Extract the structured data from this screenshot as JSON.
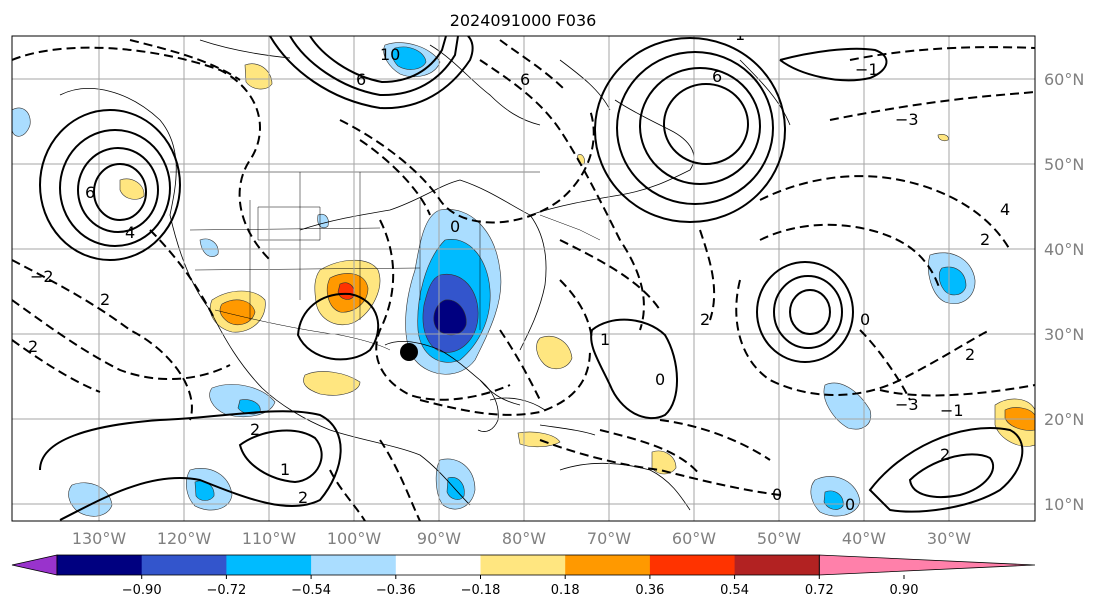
{
  "title": "2024091000 F036",
  "lon_labels": [
    "130°W",
    "120°W",
    "110°W",
    "100°W",
    "90°W",
    "80°W",
    "70°W",
    "60°W",
    "50°W",
    "40°W",
    "30°W"
  ],
  "lat_labels": [
    "60°N",
    "50°N",
    "40°N",
    "30°N",
    "20°N",
    "10°N"
  ],
  "colorbar": {
    "tick_labels": [
      "−0.90",
      "−0.72",
      "−0.54",
      "−0.36",
      "−0.18",
      "0.18",
      "0.36",
      "0.54",
      "0.72",
      "0.90"
    ],
    "colors": [
      "#9933cc",
      "#000080",
      "#3355cc",
      "#00bbff",
      "#aaddff",
      "#ffffff",
      "#ffe680",
      "#ff9900",
      "#ff3300",
      "#b22222",
      "#ff80aa"
    ]
  },
  "contour_labels": [
    "10",
    "6",
    "6",
    "6",
    "4",
    "2",
    "2",
    "2",
    "1",
    "0",
    "0",
    "0",
    "−2",
    "2",
    "6",
    "4",
    "−1",
    "−1",
    "−3",
    "−3",
    "2",
    "0",
    "2",
    "0",
    "1",
    "2",
    "2",
    "1"
  ],
  "marker": "storm-center-dot"
}
